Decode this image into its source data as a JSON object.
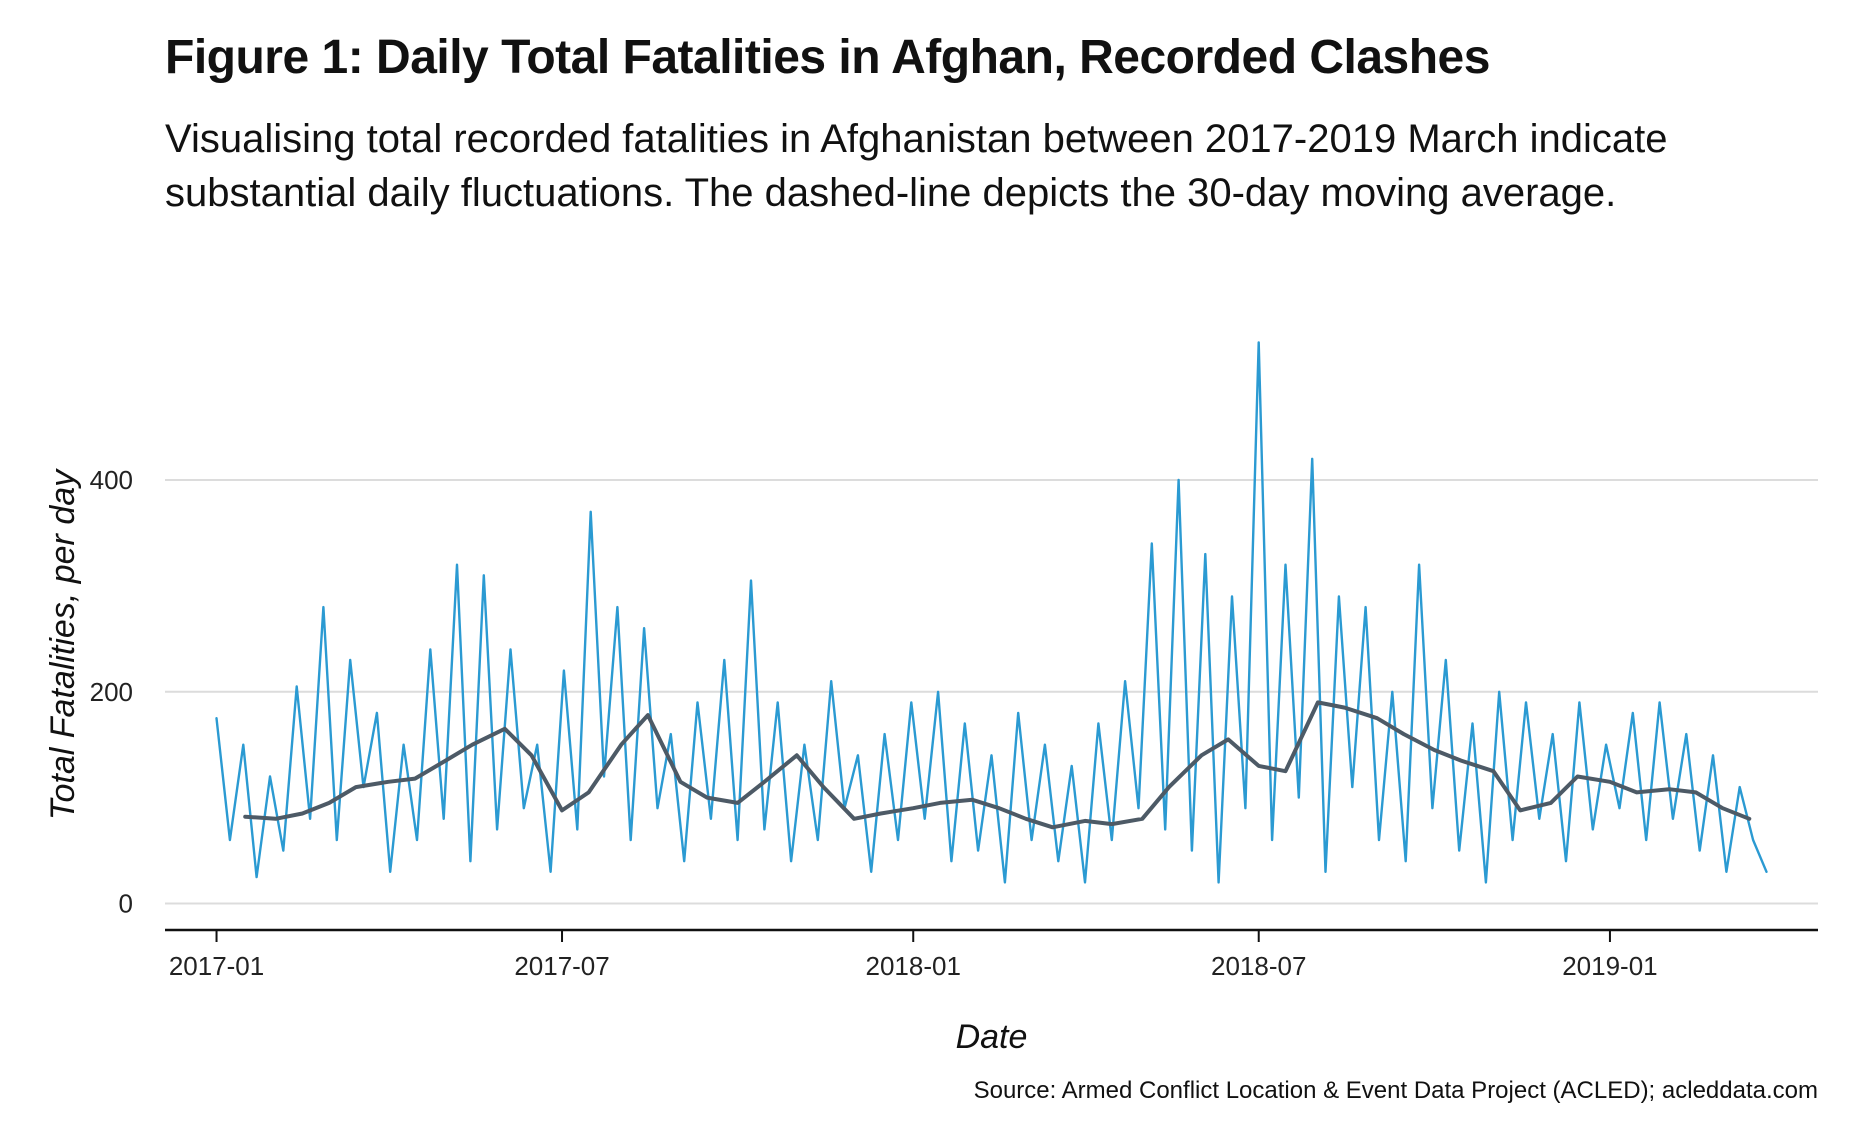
{
  "chart_data": {
    "type": "line",
    "title": "Figure 1: Daily Total Fatalities in Afghan, Recorded Clashes",
    "subtitle": "Visualising total recorded fatalities in Afghanistan between 2017-2019 March indicate substantial daily fluctuations. The dashed-line depicts the 30-day moving average.",
    "xlabel": "Date",
    "ylabel": "Total Fatalities, per day",
    "caption": "Source: Armed Conflict Location & Event Data Project (ACLED); acleddata.com",
    "xlim": [
      "2016-12-05",
      "2019-04-20"
    ],
    "ylim": [
      -25,
      570
    ],
    "x_ticks": [
      "2017-01-01",
      "2017-07-01",
      "2018-01-01",
      "2018-07-01",
      "2019-01-01"
    ],
    "x_tick_labels": [
      "2017-01",
      "2017-07",
      "2018-01",
      "2018-07",
      "2019-01"
    ],
    "y_ticks": [
      0,
      200,
      400
    ],
    "y_tick_labels": [
      "0",
      "200",
      "400"
    ],
    "grid": "horizontal",
    "colors": {
      "daily": "#2b9ad2",
      "moving_average": "#4d5a66",
      "grid": "#dcdcdc",
      "axis": "#111111"
    },
    "series": [
      {
        "key": "daily",
        "x": [
          "2017-01-01",
          "2017-01-08",
          "2017-01-15",
          "2017-01-22",
          "2017-01-29",
          "2017-02-05",
          "2017-02-12",
          "2017-02-19",
          "2017-02-26",
          "2017-03-05",
          "2017-03-12",
          "2017-03-19",
          "2017-03-26",
          "2017-04-02",
          "2017-04-09",
          "2017-04-16",
          "2017-04-23",
          "2017-04-30",
          "2017-05-07",
          "2017-05-14",
          "2017-05-21",
          "2017-05-28",
          "2017-06-04",
          "2017-06-11",
          "2017-06-18",
          "2017-06-25",
          "2017-07-02",
          "2017-07-09",
          "2017-07-16",
          "2017-07-23",
          "2017-07-30",
          "2017-08-06",
          "2017-08-13",
          "2017-08-20",
          "2017-08-27",
          "2017-09-03",
          "2017-09-10",
          "2017-09-17",
          "2017-09-24",
          "2017-10-01",
          "2017-10-08",
          "2017-10-15",
          "2017-10-22",
          "2017-10-29",
          "2017-11-05",
          "2017-11-12",
          "2017-11-19",
          "2017-11-26",
          "2017-12-03",
          "2017-12-10",
          "2017-12-17",
          "2017-12-24",
          "2017-12-31",
          "2018-01-07",
          "2018-01-14",
          "2018-01-21",
          "2018-01-28",
          "2018-02-04",
          "2018-02-11",
          "2018-02-18",
          "2018-02-25",
          "2018-03-04",
          "2018-03-11",
          "2018-03-18",
          "2018-03-25",
          "2018-04-01",
          "2018-04-08",
          "2018-04-15",
          "2018-04-22",
          "2018-04-29",
          "2018-05-06",
          "2018-05-13",
          "2018-05-20",
          "2018-05-27",
          "2018-06-03",
          "2018-06-10",
          "2018-06-17",
          "2018-06-24",
          "2018-07-01",
          "2018-07-08",
          "2018-07-15",
          "2018-07-22",
          "2018-07-29",
          "2018-08-05",
          "2018-08-12",
          "2018-08-19",
          "2018-08-26",
          "2018-09-02",
          "2018-09-09",
          "2018-09-16",
          "2018-09-23",
          "2018-09-30",
          "2018-10-07",
          "2018-10-14",
          "2018-10-21",
          "2018-10-28",
          "2018-11-04",
          "2018-11-11",
          "2018-11-18",
          "2018-11-25",
          "2018-12-02",
          "2018-12-09",
          "2018-12-16",
          "2018-12-23",
          "2018-12-30",
          "2019-01-06",
          "2019-01-13",
          "2019-01-20",
          "2019-01-27",
          "2019-02-03",
          "2019-02-10",
          "2019-02-17",
          "2019-02-24",
          "2019-03-03",
          "2019-03-10",
          "2019-03-17",
          "2019-03-24"
        ],
        "y": [
          175,
          60,
          150,
          25,
          120,
          50,
          205,
          80,
          280,
          60,
          230,
          110,
          180,
          30,
          150,
          60,
          240,
          80,
          320,
          40,
          310,
          70,
          240,
          90,
          150,
          30,
          220,
          70,
          370,
          120,
          280,
          60,
          260,
          90,
          160,
          40,
          190,
          80,
          230,
          60,
          305,
          70,
          190,
          40,
          150,
          60,
          210,
          90,
          140,
          30,
          160,
          60,
          190,
          80,
          200,
          40,
          170,
          50,
          140,
          20,
          180,
          60,
          150,
          40,
          130,
          20,
          170,
          60,
          210,
          90,
          340,
          70,
          400,
          50,
          330,
          20,
          290,
          90,
          530,
          60,
          320,
          100,
          420,
          30,
          290,
          110,
          280,
          60,
          200,
          40,
          320,
          90,
          230,
          50,
          170,
          20,
          200,
          60,
          190,
          80,
          160,
          40,
          190,
          70,
          150,
          90,
          180,
          60,
          190,
          80,
          160,
          50,
          140,
          30,
          110,
          60,
          30
        ]
      },
      {
        "key": "moving_average",
        "x": [
          "2017-01-16",
          "2017-02-01",
          "2017-02-15",
          "2017-03-01",
          "2017-03-15",
          "2017-04-01",
          "2017-04-15",
          "2017-05-01",
          "2017-05-15",
          "2017-06-01",
          "2017-06-15",
          "2017-07-01",
          "2017-07-15",
          "2017-08-01",
          "2017-08-15",
          "2017-09-01",
          "2017-09-15",
          "2017-10-01",
          "2017-10-15",
          "2017-11-01",
          "2017-11-15",
          "2017-12-01",
          "2017-12-15",
          "2018-01-01",
          "2018-01-15",
          "2018-02-01",
          "2018-02-15",
          "2018-03-01",
          "2018-03-15",
          "2018-04-01",
          "2018-04-15",
          "2018-05-01",
          "2018-05-15",
          "2018-06-01",
          "2018-06-15",
          "2018-07-01",
          "2018-07-15",
          "2018-08-01",
          "2018-08-15",
          "2018-09-01",
          "2018-09-15",
          "2018-10-01",
          "2018-10-15",
          "2018-11-01",
          "2018-11-15",
          "2018-12-01",
          "2018-12-15",
          "2019-01-01",
          "2019-01-15",
          "2019-02-01",
          "2019-02-15",
          "2019-03-01",
          "2019-03-15"
        ],
        "y": [
          82,
          80,
          85,
          95,
          110,
          115,
          118,
          135,
          150,
          165,
          140,
          88,
          105,
          150,
          178,
          115,
          100,
          95,
          115,
          140,
          110,
          80,
          85,
          90,
          95,
          98,
          90,
          80,
          72,
          78,
          75,
          80,
          110,
          140,
          155,
          130,
          125,
          190,
          185,
          175,
          160,
          145,
          135,
          125,
          88,
          95,
          120,
          115,
          105,
          108,
          105,
          90,
          80
        ]
      }
    ]
  }
}
